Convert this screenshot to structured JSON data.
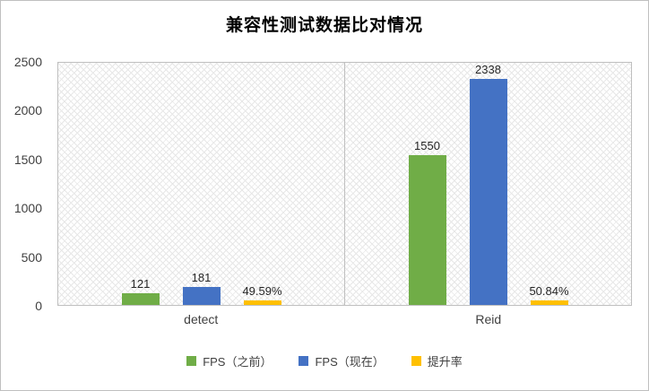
{
  "chart_data": {
    "type": "bar",
    "title": "兼容性测试数据比对情况",
    "categories": [
      "detect",
      "Reid"
    ],
    "series": [
      {
        "name": "FPS（之前）",
        "color": "#70AD47",
        "values": [
          121,
          1550
        ],
        "labels": [
          "121",
          "1550"
        ]
      },
      {
        "name": "FPS（现在）",
        "color": "#4472C4",
        "values": [
          181,
          2338
        ],
        "labels": [
          "181",
          "2338"
        ]
      },
      {
        "name": "提升率",
        "color": "#FFC000",
        "values": [
          49.59,
          50.84
        ],
        "labels": [
          "49.59%",
          "50.84%"
        ]
      }
    ],
    "xlabel": "",
    "ylabel": "",
    "ylim": [
      0,
      2500
    ],
    "y_ticks": [
      0,
      500,
      1000,
      1500,
      2000,
      2500
    ],
    "grid": "category-separator-only",
    "legend_position": "bottom",
    "plot_background": "diagonal-crosshatch"
  }
}
